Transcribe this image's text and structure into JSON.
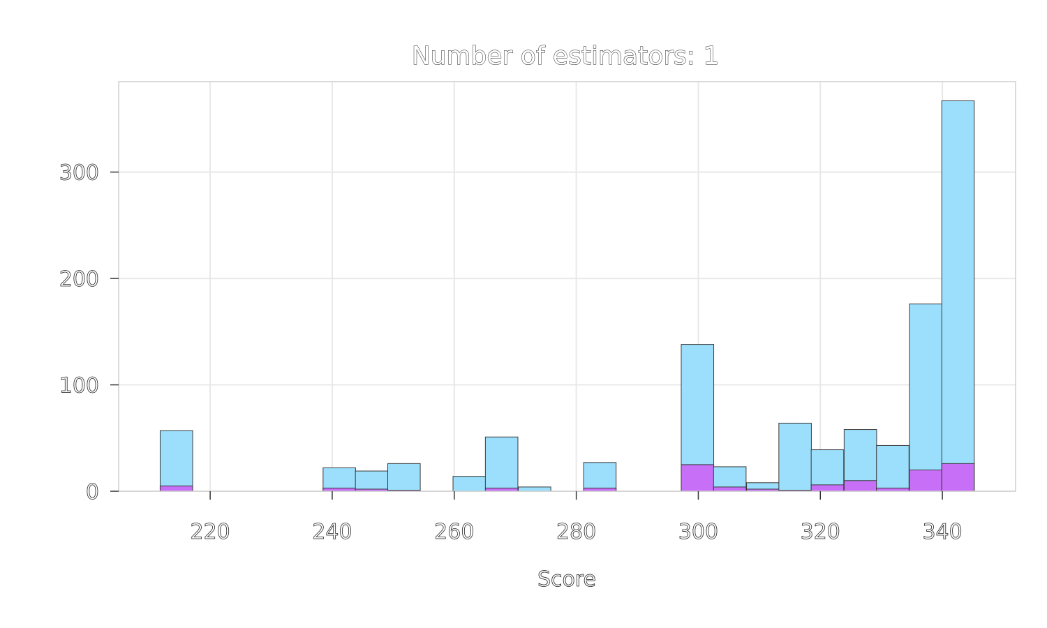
{
  "chart_data": {
    "type": "bar",
    "title": "Number of estimators: 1",
    "xlabel": "Score",
    "ylabel": "",
    "xlim": [
      205,
      352
    ],
    "ylim": [
      0,
      385
    ],
    "x_ticks": [
      220,
      240,
      260,
      280,
      300,
      320,
      340
    ],
    "y_ticks": [
      0,
      100,
      200,
      300
    ],
    "grid": true,
    "bin_width": 5.33,
    "colors": {
      "total": "#9bdffc",
      "subset": "#c76ff7"
    },
    "bins": [
      {
        "x0": 211.8,
        "total": 57,
        "subset": 5
      },
      {
        "x0": 238.5,
        "total": 22,
        "subset": 3
      },
      {
        "x0": 243.8,
        "total": 19,
        "subset": 2
      },
      {
        "x0": 249.1,
        "total": 26,
        "subset": 1
      },
      {
        "x0": 259.8,
        "total": 14,
        "subset": 0
      },
      {
        "x0": 265.1,
        "total": 51,
        "subset": 3
      },
      {
        "x0": 270.5,
        "total": 4,
        "subset": 0
      },
      {
        "x0": 281.2,
        "total": 27,
        "subset": 3
      },
      {
        "x0": 297.2,
        "total": 138,
        "subset": 25
      },
      {
        "x0": 302.5,
        "total": 23,
        "subset": 4
      },
      {
        "x0": 307.9,
        "total": 8,
        "subset": 2
      },
      {
        "x0": 313.2,
        "total": 64,
        "subset": 1
      },
      {
        "x0": 318.5,
        "total": 39,
        "subset": 6
      },
      {
        "x0": 323.9,
        "total": 58,
        "subset": 10
      },
      {
        "x0": 329.2,
        "total": 43,
        "subset": 3
      },
      {
        "x0": 334.6,
        "total": 176,
        "subset": 20
      },
      {
        "x0": 339.9,
        "total": 367,
        "subset": 26
      }
    ]
  }
}
